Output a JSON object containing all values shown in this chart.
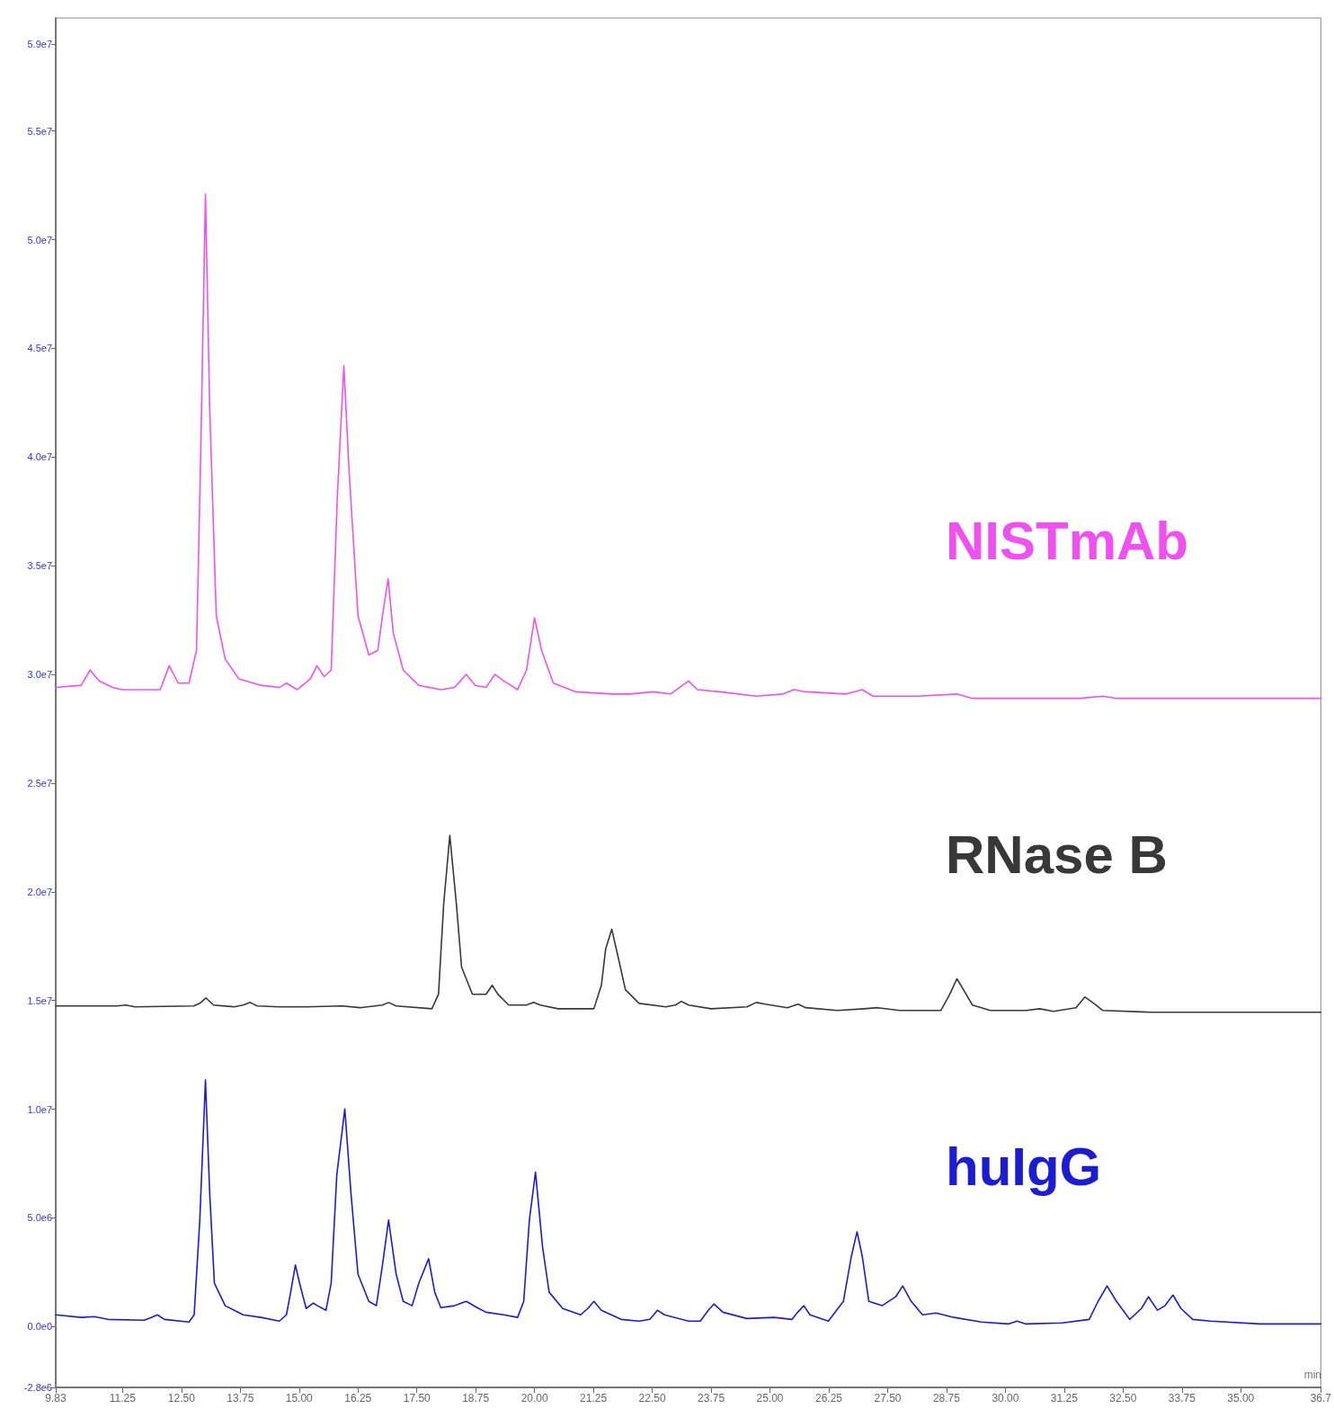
{
  "chart_data": {
    "type": "line",
    "xlabel": "min",
    "xlim": [
      9.83,
      36.7
    ],
    "xticks": [
      {
        "value": 9.83,
        "label": "9.83"
      },
      11.25,
      {
        "value": 12.5,
        "label": "12.50"
      },
      13.75,
      {
        "value": 15,
        "label": "15.00"
      },
      16.25,
      {
        "value": 17.5,
        "label": "17.50"
      },
      18.75,
      {
        "value": 20,
        "label": "20.00"
      },
      21.25,
      {
        "value": 22.5,
        "label": "22.50"
      },
      23.75,
      {
        "value": 25,
        "label": "25.00"
      },
      26.25,
      {
        "value": 27.5,
        "label": "27.50"
      },
      28.75,
      {
        "value": 30,
        "label": "30.00"
      },
      31.25,
      {
        "value": 32.5,
        "label": "32.50"
      },
      33.75,
      {
        "value": 35,
        "label": "35.00"
      },
      36.7
    ],
    "ylim": [
      -2800000.0,
      60200000.0
    ],
    "yticks": [
      {
        "value": -2800000.0,
        "label": "-2.8e6"
      },
      {
        "value": 0,
        "label": "0.0e0"
      },
      {
        "value": 5000000.0,
        "label": "5.0e6"
      },
      {
        "value": 10000000.0,
        "label": "1.0e7"
      },
      {
        "value": 15000000.0,
        "label": "1.5e7"
      },
      {
        "value": 20000000.0,
        "label": "2.0e7"
      },
      {
        "value": 25000000.0,
        "label": "2.5e7"
      },
      {
        "value": 30000000.0,
        "label": "3.0e7"
      },
      {
        "value": 35000000.0,
        "label": "3.5e7"
      },
      {
        "value": 40000000.0,
        "label": "4.0e7"
      },
      {
        "value": 45000000.0,
        "label": "4.5e7"
      },
      {
        "value": 50000000.0,
        "label": "5.0e7"
      },
      {
        "value": 55000000.0,
        "label": "5.5e7"
      },
      {
        "value": 59000000.0,
        "label": "5.9e7"
      }
    ],
    "grid": false,
    "legend": false,
    "marker": "none",
    "line_style": "solid",
    "series": [
      {
        "name": "NISTmAb",
        "color": "#f050f0",
        "x": [
          9.83,
          10.37,
          10.56,
          10.75,
          11.04,
          11.23,
          11.71,
          12.05,
          12.24,
          12.43,
          12.66,
          12.82,
          12.91,
          13.01,
          13.1,
          13.24,
          13.43,
          13.72,
          14.19,
          14.58,
          14.73,
          14.96,
          15.24,
          15.38,
          15.53,
          15.68,
          15.81,
          15.95,
          16.06,
          16.25,
          16.48,
          16.67,
          16.77,
          16.89,
          17.0,
          17.21,
          17.54,
          18.01,
          18.3,
          18.55,
          18.74,
          18.97,
          19.16,
          19.35,
          19.64,
          19.83,
          20.0,
          20.15,
          20.4,
          20.88,
          21.65,
          22.03,
          22.51,
          22.89,
          23.27,
          23.46,
          23.94,
          24.71,
          25.28,
          25.51,
          25.76,
          26.62,
          26.96,
          27.19,
          28.15,
          28.97,
          29.3,
          31.59,
          32.07,
          32.36,
          36.7
        ],
        "values": [
          29400000.0,
          29500000.0,
          30200000.0,
          29700000.0,
          29400000.0,
          29300000.0,
          29300000.0,
          29300000.0,
          30400000.0,
          29600000.0,
          29600000.0,
          31100000.0,
          40200000.0,
          52100000.0,
          42300000.0,
          32700000.0,
          30700000.0,
          29800000.0,
          29500000.0,
          29400000.0,
          29600000.0,
          29300000.0,
          29800000.0,
          30400000.0,
          29900000.0,
          30200000.0,
          38100000.0,
          44200000.0,
          39400000.0,
          32700000.0,
          30900000.0,
          31100000.0,
          32700000.0,
          34400000.0,
          31900000.0,
          30200000.0,
          29500000.0,
          29300000.0,
          29400000.0,
          30000000.0,
          29500000.0,
          29400000.0,
          30000000.0,
          29700000.0,
          29300000.0,
          30200000.0,
          32600000.0,
          31100000.0,
          29600000.0,
          29200000.0,
          29100000.0,
          29100000.0,
          29200000.0,
          29100000.0,
          29700000.0,
          29300000.0,
          29200000.0,
          29000000.0,
          29100000.0,
          29300000.0,
          29200000.0,
          29100000.0,
          29300000.0,
          29000000.0,
          29000000.0,
          29100000.0,
          28900000.0,
          28900000.0,
          29000000.0,
          28900000.0,
          28900000.0
        ]
      },
      {
        "name": "RNase B",
        "color": "#383838",
        "x": [
          9.83,
          11.13,
          11.32,
          11.51,
          12.76,
          12.89,
          13.02,
          13.18,
          13.62,
          13.81,
          13.96,
          14.11,
          14.58,
          15.15,
          15.91,
          16.29,
          16.77,
          16.9,
          17.06,
          17.82,
          17.96,
          18.07,
          18.2,
          18.34,
          18.45,
          18.68,
          18.97,
          19.1,
          19.22,
          19.45,
          19.83,
          19.98,
          20.12,
          20.5,
          21.26,
          21.42,
          21.51,
          21.64,
          21.78,
          21.93,
          22.22,
          22.79,
          22.99,
          23.12,
          23.27,
          23.75,
          24.51,
          24.71,
          24.9,
          25.37,
          25.6,
          25.76,
          26.43,
          27.0,
          27.29,
          27.76,
          28.63,
          28.82,
          28.97,
          29.11,
          29.3,
          29.68,
          30.44,
          30.73,
          31.02,
          31.5,
          31.69,
          31.88,
          32.07,
          33.12,
          36.7
        ],
        "values": [
          14750000.0,
          14750000.0,
          14790000.0,
          14710000.0,
          14750000.0,
          14870000.0,
          15120000.0,
          14790000.0,
          14710000.0,
          14790000.0,
          14910000.0,
          14750000.0,
          14710000.0,
          14710000.0,
          14750000.0,
          14670000.0,
          14790000.0,
          14910000.0,
          14750000.0,
          14620000.0,
          15290000.0,
          19440000.0,
          22600000.0,
          19440000.0,
          16540000.0,
          15290000.0,
          15290000.0,
          15700000.0,
          15290000.0,
          14790000.0,
          14790000.0,
          14910000.0,
          14790000.0,
          14620000.0,
          14620000.0,
          15700000.0,
          17370000.0,
          18280000.0,
          16950000.0,
          15500000.0,
          14870000.0,
          14710000.0,
          14790000.0,
          14960000.0,
          14790000.0,
          14620000.0,
          14710000.0,
          14910000.0,
          14830000.0,
          14670000.0,
          14830000.0,
          14670000.0,
          14540000.0,
          14620000.0,
          14670000.0,
          14540000.0,
          14540000.0,
          15290000.0,
          16000000.0,
          15500000.0,
          14790000.0,
          14540000.0,
          14540000.0,
          14620000.0,
          14500000.0,
          14670000.0,
          15160000.0,
          14870000.0,
          14540000.0,
          14460000.0,
          14460000.0
        ]
      },
      {
        "name": "huIgG",
        "color": "#1c1cd0",
        "x": [
          9.83,
          10.37,
          10.65,
          10.94,
          11.71,
          11.86,
          11.99,
          12.14,
          12.66,
          12.77,
          12.89,
          13.01,
          13.1,
          13.2,
          13.43,
          13.81,
          14.19,
          14.58,
          14.73,
          14.82,
          14.92,
          15.01,
          15.15,
          15.3,
          15.39,
          15.57,
          15.68,
          15.8,
          15.97,
          16.1,
          16.25,
          16.48,
          16.64,
          16.77,
          16.9,
          17.06,
          17.21,
          17.4,
          17.54,
          17.75,
          17.88,
          18.01,
          18.3,
          18.55,
          18.78,
          18.97,
          19.35,
          19.64,
          19.77,
          19.89,
          20.02,
          20.17,
          20.31,
          20.6,
          20.98,
          21.13,
          21.26,
          21.42,
          21.84,
          22.22,
          22.45,
          22.61,
          22.76,
          23.27,
          23.52,
          23.69,
          23.81,
          24.0,
          24.51,
          25.09,
          25.47,
          25.59,
          25.72,
          25.85,
          26.24,
          26.56,
          26.73,
          26.85,
          26.96,
          27.1,
          27.38,
          27.67,
          27.82,
          28.0,
          28.24,
          28.53,
          28.91,
          29.49,
          30.06,
          30.25,
          30.44,
          31.21,
          31.78,
          31.97,
          32.16,
          32.36,
          32.64,
          32.89,
          33.04,
          33.23,
          33.39,
          33.56,
          33.73,
          33.98,
          34.36,
          35.41,
          36.7
        ],
        "values": [
          540000.0,
          420000.0,
          460000.0,
          330000.0,
          290000.0,
          420000.0,
          540000.0,
          330000.0,
          210000.0,
          540000.0,
          4900000.0,
          11340000.0,
          6150000.0,
          1990000.0,
          960000.0,
          540000.0,
          420000.0,
          250000.0,
          540000.0,
          1580000.0,
          2830000.0,
          1990000.0,
          830000.0,
          1080000.0,
          960000.0,
          750000.0,
          1990000.0,
          6980000.0,
          10010000.0,
          6150000.0,
          2410000.0,
          1160000.0,
          960000.0,
          2830000.0,
          4900000.0,
          2410000.0,
          1160000.0,
          960000.0,
          1990000.0,
          3120000.0,
          1580000.0,
          870000.0,
          960000.0,
          1160000.0,
          870000.0,
          660000.0,
          540000.0,
          420000.0,
          1160000.0,
          4900000.0,
          7100000.0,
          3660000.0,
          1580000.0,
          830000.0,
          540000.0,
          830000.0,
          1160000.0,
          750000.0,
          330000.0,
          250000.0,
          330000.0,
          750000.0,
          540000.0,
          250000.0,
          250000.0,
          750000.0,
          1040000.0,
          660000.0,
          370000.0,
          420000.0,
          330000.0,
          660000.0,
          960000.0,
          540000.0,
          250000.0,
          1160000.0,
          3240000.0,
          4360000.0,
          3240000.0,
          1160000.0,
          960000.0,
          1370000.0,
          1870000.0,
          1160000.0,
          540000.0,
          620000.0,
          420000.0,
          210000.0,
          120000.0,
          250000.0,
          120000.0,
          170000.0,
          330000.0,
          1160000.0,
          1870000.0,
          1160000.0,
          330000.0,
          830000.0,
          1370000.0,
          750000.0,
          960000.0,
          1450000.0,
          830000.0,
          330000.0,
          250000.0,
          120000.0,
          120000.0
        ]
      }
    ]
  }
}
